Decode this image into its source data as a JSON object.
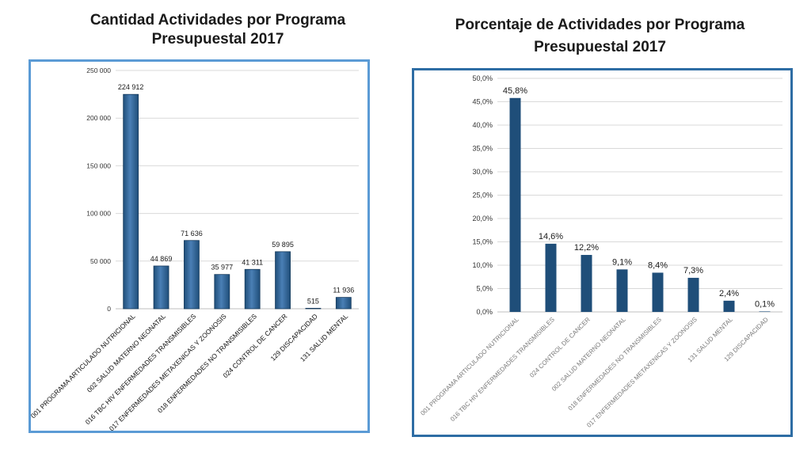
{
  "left_title": "Cantidad Actividades por Programa Presupuestal 2017",
  "right_title": "Porcentaje de Actividades por Programa Presupuestal 2017",
  "colors": {
    "bar_left_dark": "#1f4e79",
    "bar_left_light": "#4a7fb5",
    "bar_right": "#1f4e79",
    "frame_left": "#5b9bd5",
    "frame_right": "#2e6da4",
    "grid": "#d9d9d9"
  },
  "chart_data": [
    {
      "type": "bar",
      "title": "Cantidad Actividades por Programa Presupuestal 2017",
      "categories": [
        "001 PROGRAMA ARTICULADO NUTRICIONAL",
        "002 SALUD MATERNO NEONATAL",
        "016 TBC HIV ENFERMEDADES TRANSMISIBLES",
        "017 ENFERMEDADES METAXENICAS Y ZOONOSIS",
        "018 ENFERMEDADES NO TRANSMISIBLES",
        "024 CONTROL DE CANCER",
        "129 DISCAPACIDAD",
        "131 SALUD MENTAL"
      ],
      "values": [
        224912,
        44869,
        71636,
        35977,
        41311,
        59895,
        515,
        11936
      ],
      "data_labels": [
        "224 912",
        "44 869",
        "71 636",
        "35 977",
        "41 311",
        "59 895",
        "515",
        "11 936"
      ],
      "yticks": [
        "0",
        "50 000",
        "100 000",
        "150 000",
        "200 000",
        "250 000"
      ],
      "ylim": [
        0,
        250000
      ],
      "grid": true
    },
    {
      "type": "bar",
      "title": "Porcentaje de Actividades por Programa Presupuestal 2017",
      "categories": [
        "001 PROGRAMA ARTICULADO NUTRICIONAL",
        "016 TBC HIV ENFERMEDADES TRANSMISIBLES",
        "024 CONTROL DE CANCER",
        "002 SALUD MATERNO NEONATAL",
        "018 ENFERMEDADES NO TRANSMISIBLES",
        "017 ENFERMEDADES METAXENICAS Y ZOONOSIS",
        "131 SALUD MENTAL",
        "129 DISCAPACIDAD"
      ],
      "values": [
        45.8,
        14.6,
        12.2,
        9.1,
        8.4,
        7.3,
        2.4,
        0.1
      ],
      "data_labels": [
        "45,8%",
        "14,6%",
        "12,2%",
        "9,1%",
        "8,4%",
        "7,3%",
        "2,4%",
        "0,1%"
      ],
      "yticks": [
        "0,0%",
        "5,0%",
        "10,0%",
        "15,0%",
        "20,0%",
        "25,0%",
        "30,0%",
        "35,0%",
        "40,0%",
        "45,0%",
        "50,0%"
      ],
      "ylim": [
        0,
        50
      ],
      "grid": true
    }
  ]
}
